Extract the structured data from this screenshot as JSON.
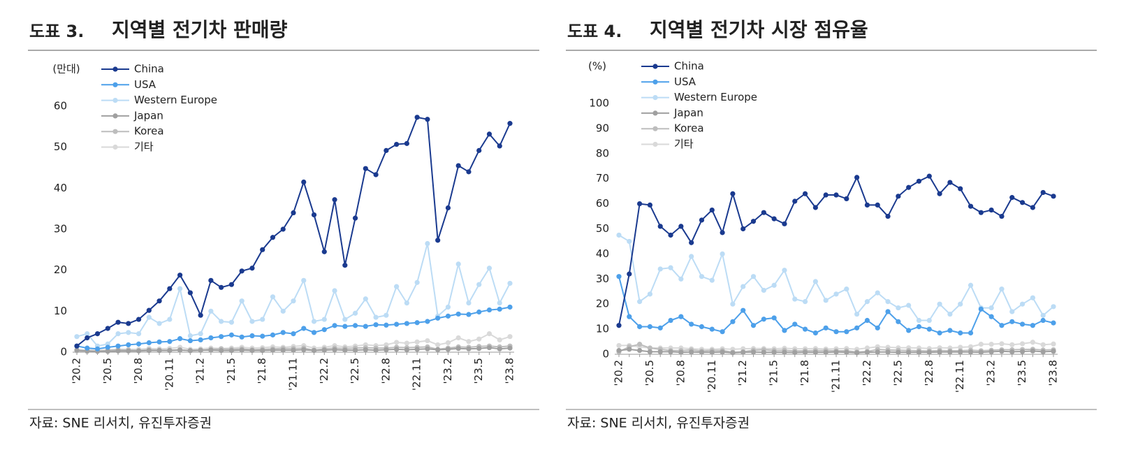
{
  "chart_data": [
    {
      "type": "line",
      "title_number": "도표 3.",
      "title": "지역별 전기차 판매량",
      "y_label": "(만대)",
      "source": "자료: SNE 리서치, 유진투자증권",
      "categories": [
        "'20.2",
        null,
        null,
        "'20.5",
        null,
        null,
        "'20.8",
        null,
        null,
        "'20.11",
        null,
        null,
        "'21.2",
        null,
        null,
        "'21.5",
        null,
        null,
        "'21.8",
        null,
        null,
        "'21.11",
        null,
        null,
        "'22.2",
        null,
        null,
        "'22.5",
        null,
        null,
        "'22.8",
        null,
        null,
        "'22.11",
        null,
        null,
        "'23.2",
        null,
        null,
        "'23.5",
        null,
        null,
        "'23.8"
      ],
      "ylim": [
        0,
        60
      ],
      "yticks": [
        0,
        10,
        20,
        30,
        40,
        50,
        60
      ],
      "series": [
        {
          "name": "China",
          "color": "#1a3a8f",
          "values": [
            1.5,
            3.5,
            4.5,
            5.8,
            7.3,
            7.0,
            8.0,
            10.2,
            12.5,
            15.5,
            18.8,
            14.5,
            9,
            17.5,
            15.8,
            16.5,
            19.8,
            20.5,
            25,
            28,
            30,
            34,
            41.5,
            33.5,
            24.5,
            37.2,
            21.2,
            32.7,
            44.8,
            43.3,
            49.2,
            50.7,
            50.9,
            57.3,
            56.8,
            27.3,
            35.2,
            45.5,
            44,
            49.2,
            53.2,
            50.3,
            55.8
          ]
        },
        {
          "name": "USA",
          "color": "#4da0ea",
          "values": [
            1.5,
            1.0,
            0.8,
            1.2,
            1.5,
            1.8,
            2.0,
            2.3,
            2.5,
            2.6,
            3.3,
            2.8,
            3.0,
            3.5,
            3.8,
            4.2,
            3.7,
            4.0,
            3.9,
            4.2,
            4.8,
            4.5,
            5.8,
            4.8,
            5.5,
            6.5,
            6.3,
            6.5,
            6.3,
            6.7,
            6.6,
            6.8,
            7.0,
            7.2,
            7.5,
            8.3,
            8.8,
            9.3,
            9.2,
            9.8,
            10.3,
            10.5,
            11.0
          ]
        },
        {
          "name": "Western Europe",
          "color": "#bcdcf5",
          "values": [
            3.8,
            4.5,
            1.5,
            2.0,
            4.5,
            4.8,
            4.5,
            8.5,
            7.0,
            8.0,
            15.5,
            4.0,
            4.5,
            10,
            7.5,
            7.3,
            12.5,
            7.5,
            8.0,
            13.5,
            10,
            12.5,
            17.5,
            7.5,
            8.0,
            15,
            8.0,
            9.5,
            13,
            8.5,
            9.0,
            16,
            12,
            17,
            26.5,
            8.8,
            11,
            21.5,
            12,
            16.5,
            20.5,
            12,
            16.8
          ]
        },
        {
          "name": "Japan",
          "color": "#a0a0a0",
          "values": [
            0.5,
            0.3,
            0.2,
            0.2,
            0.3,
            0.3,
            0.3,
            0.4,
            0.4,
            0.4,
            0.5,
            0.4,
            0.5,
            0.5,
            0.4,
            0.4,
            0.5,
            0.4,
            0.4,
            0.5,
            0.5,
            0.5,
            0.6,
            0.4,
            0.5,
            0.6,
            0.5,
            0.5,
            0.6,
            0.5,
            0.6,
            0.7,
            0.6,
            0.7,
            0.8,
            0.6,
            0.7,
            0.9,
            0.8,
            0.9,
            1.1,
            0.8,
            1.0
          ]
        },
        {
          "name": "Korea",
          "color": "#bdbdbd",
          "values": [
            0.3,
            0.2,
            0.3,
            0.5,
            0.6,
            0.5,
            0.4,
            0.6,
            0.5,
            0.5,
            0.6,
            0.3,
            0.4,
            0.7,
            0.8,
            0.7,
            0.8,
            0.6,
            0.7,
            0.8,
            0.9,
            0.9,
            1.0,
            0.5,
            0.8,
            1.0,
            0.9,
            1.0,
            1.1,
            1.0,
            1.0,
            1.2,
            1.1,
            1.2,
            1.3,
            0.7,
            1.0,
            1.3,
            1.2,
            1.4,
            1.5,
            1.3,
            1.5
          ]
        },
        {
          "name": "기타",
          "color": "#d9d9d9",
          "values": [
            0.6,
            0.5,
            0.4,
            0.5,
            0.7,
            0.7,
            0.7,
            0.9,
            0.8,
            0.9,
            1.2,
            0.7,
            0.8,
            1.0,
            0.9,
            1.0,
            1.2,
            1.0,
            1.1,
            1.3,
            1.2,
            1.4,
            1.6,
            1.0,
            1.2,
            1.6,
            1.3,
            1.5,
            1.8,
            1.6,
            1.8,
            2.4,
            2.2,
            2.5,
            2.8,
            1.8,
            2.3,
            3.5,
            2.6,
            3.2,
            4.5,
            3.0,
            3.8
          ]
        }
      ]
    },
    {
      "type": "line",
      "title_number": "도표 4.",
      "title": "지역별 전기차 시장 점유율",
      "y_label": "(%)",
      "source": "자료: SNE 리서치, 유진투자증권",
      "categories": [
        "'20.2",
        null,
        null,
        "'20.5",
        null,
        null,
        "'20.8",
        null,
        null,
        "'20.11",
        null,
        null,
        "'21.2",
        null,
        null,
        "'21.5",
        null,
        null,
        "'21.8",
        null,
        null,
        "'21.11",
        null,
        null,
        "'22.2",
        null,
        null,
        "'22.5",
        null,
        null,
        "'22.8",
        null,
        null,
        "'22.11",
        null,
        null,
        "'23.2",
        null,
        null,
        "'23.5",
        null,
        null,
        "'23.8"
      ],
      "ylim": [
        0,
        100
      ],
      "yticks": [
        0,
        10,
        20,
        30,
        40,
        50,
        60,
        70,
        80,
        90,
        100
      ],
      "series": [
        {
          "name": "China",
          "color": "#1a3a8f",
          "values": [
            11.5,
            32,
            60,
            59.5,
            51,
            47.5,
            51,
            44.5,
            53.5,
            57.5,
            48.5,
            64,
            50,
            53,
            56.5,
            54,
            52,
            61,
            64,
            58.5,
            63.5,
            63.5,
            62,
            70.5,
            59.5,
            59.5,
            55,
            63,
            66.5,
            69,
            71,
            64,
            68.5,
            66,
            59,
            56.5,
            57.5,
            55,
            62.5,
            60.5,
            58.5,
            64.5,
            63
          ]
        },
        {
          "name": "USA",
          "color": "#4da0ea",
          "values": [
            31,
            15,
            11,
            11,
            10.5,
            13.5,
            15,
            12,
            11,
            10,
            9,
            13,
            17.5,
            11.5,
            14,
            14.5,
            9.5,
            12,
            10,
            8.5,
            10.5,
            9,
            9,
            10.5,
            13.5,
            10.5,
            17,
            13,
            9.5,
            11,
            10,
            8.5,
            9.5,
            8.5,
            8.5,
            18,
            15,
            11.5,
            13,
            12,
            11.5,
            13.5,
            12.5
          ]
        },
        {
          "name": "Western Europe",
          "color": "#bcdcf5",
          "values": [
            47.5,
            45,
            21,
            24,
            34,
            34.5,
            30,
            39,
            31,
            29.5,
            40,
            20,
            27,
            31,
            25.5,
            27.5,
            33.5,
            22,
            21,
            29,
            21.5,
            24,
            26,
            16,
            21,
            24.5,
            21,
            18.5,
            19.5,
            13.5,
            13.5,
            20,
            16,
            20,
            27.5,
            18.5,
            18.5,
            26,
            17,
            20,
            22.5,
            15.5,
            19
          ]
        },
        {
          "name": "Japan",
          "color": "#a0a0a0",
          "values": [
            1.5,
            2,
            1.5,
            1,
            1,
            1,
            0.8,
            0.9,
            0.8,
            0.8,
            0.9,
            0.6,
            0.8,
            0.9,
            0.8,
            0.8,
            0.8,
            0.7,
            0.8,
            0.8,
            0.8,
            0.9,
            0.8,
            0.6,
            0.8,
            0.9,
            0.9,
            0.8,
            0.8,
            0.8,
            0.8,
            0.9,
            0.9,
            0.9,
            0.9,
            0.8,
            1.0,
            1.2,
            1.0,
            1.1,
            1.3,
            1.0,
            1.2
          ]
        },
        {
          "name": "Korea",
          "color": "#bdbdbd",
          "values": [
            1,
            3,
            4,
            2.5,
            2,
            1.5,
            1.5,
            1.7,
            1.3,
            1.5,
            1.5,
            0.8,
            1,
            1.6,
            1.8,
            1.5,
            1.6,
            1.3,
            1.4,
            1.5,
            1.5,
            1.4,
            1.4,
            0.9,
            1.1,
            1.9,
            1.7,
            1.6,
            1.5,
            1.4,
            1.3,
            1.5,
            1.4,
            1.4,
            1.6,
            1.4,
            1.6,
            1.8,
            1.8,
            1.9,
            2.0,
            1.7,
            1.8
          ]
        },
        {
          "name": "기타",
          "color": "#d9d9d9",
          "values": [
            3.5,
            3.5,
            3,
            2.5,
            2.5,
            2.5,
            2.5,
            2.2,
            2.0,
            2.0,
            2.2,
            2.0,
            2.2,
            2.3,
            2.3,
            2.2,
            2.4,
            2.2,
            2.2,
            2.3,
            2.1,
            2.2,
            2.3,
            2.0,
            2.5,
            3.0,
            2.8,
            2.6,
            2.6,
            2.5,
            2.3,
            2.6,
            2.5,
            2.8,
            3.0,
            4.0,
            4.0,
            4.2,
            3.8,
            4.2,
            4.8,
            3.8,
            4.1
          ]
        }
      ]
    }
  ]
}
